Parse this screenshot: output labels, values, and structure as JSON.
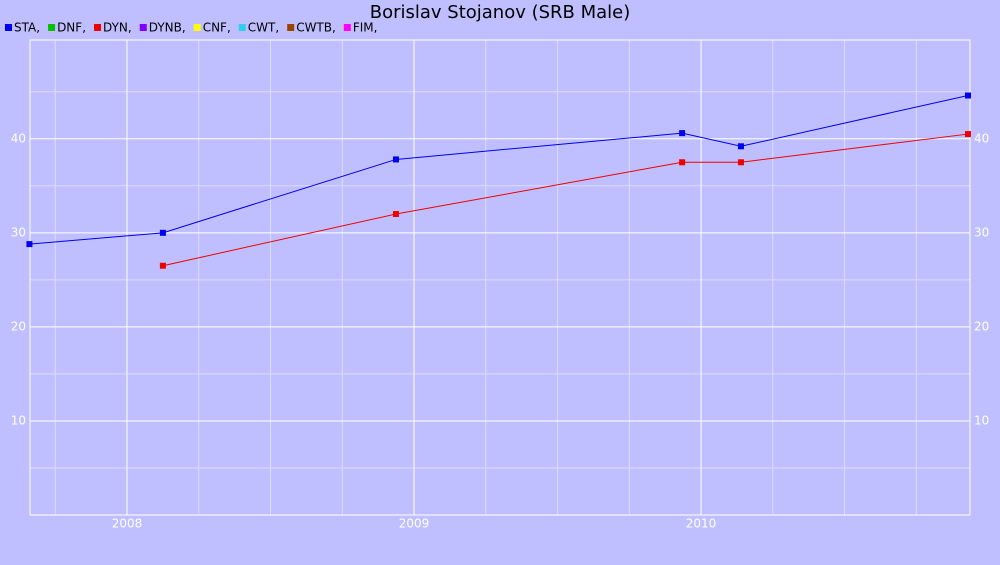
{
  "chart_data": {
    "type": "line",
    "title": "Borislav Stojanov (SRB Male)",
    "legend_separator": ",",
    "series": [
      {
        "name": "STA",
        "color": "#0000ee",
        "x": [
          2007.66,
          2008.125,
          2008.937,
          2009.934,
          2010.139,
          2010.93
        ],
        "values": [
          28.8,
          30.0,
          37.8,
          40.6,
          39.2,
          44.6
        ]
      },
      {
        "name": "DNF",
        "color": "#00c000",
        "x": [],
        "values": []
      },
      {
        "name": "DYN",
        "color": "#ee0000",
        "x": [
          2008.125,
          2008.937,
          2009.934,
          2010.139,
          2010.93
        ],
        "values": [
          26.5,
          32.0,
          37.5,
          37.5,
          40.5
        ]
      },
      {
        "name": "DYNB",
        "color": "#7f00ff",
        "x": [],
        "values": []
      },
      {
        "name": "CNF",
        "color": "#ffff00",
        "x": [],
        "values": []
      },
      {
        "name": "CWT",
        "color": "#33ccee",
        "x": [],
        "values": []
      },
      {
        "name": "CWTB",
        "color": "#994400",
        "x": [],
        "values": []
      },
      {
        "name": "FIM",
        "color": "#ff00ff",
        "x": [],
        "values": []
      }
    ],
    "xlim": [
      2007.662,
      2010.937
    ],
    "xticks": [
      2008,
      2009,
      2010
    ],
    "xminor_ticks": [
      2007.75,
      2008.25,
      2008.5,
      2008.75,
      2009.25,
      2009.5,
      2009.75,
      2010.25,
      2010.5,
      2010.75
    ],
    "ylim": [
      0,
      50.5
    ],
    "yticks": [
      10,
      20,
      30,
      40
    ],
    "yminor_ticks": [
      5,
      15,
      25,
      35,
      45
    ],
    "grid": true
  }
}
